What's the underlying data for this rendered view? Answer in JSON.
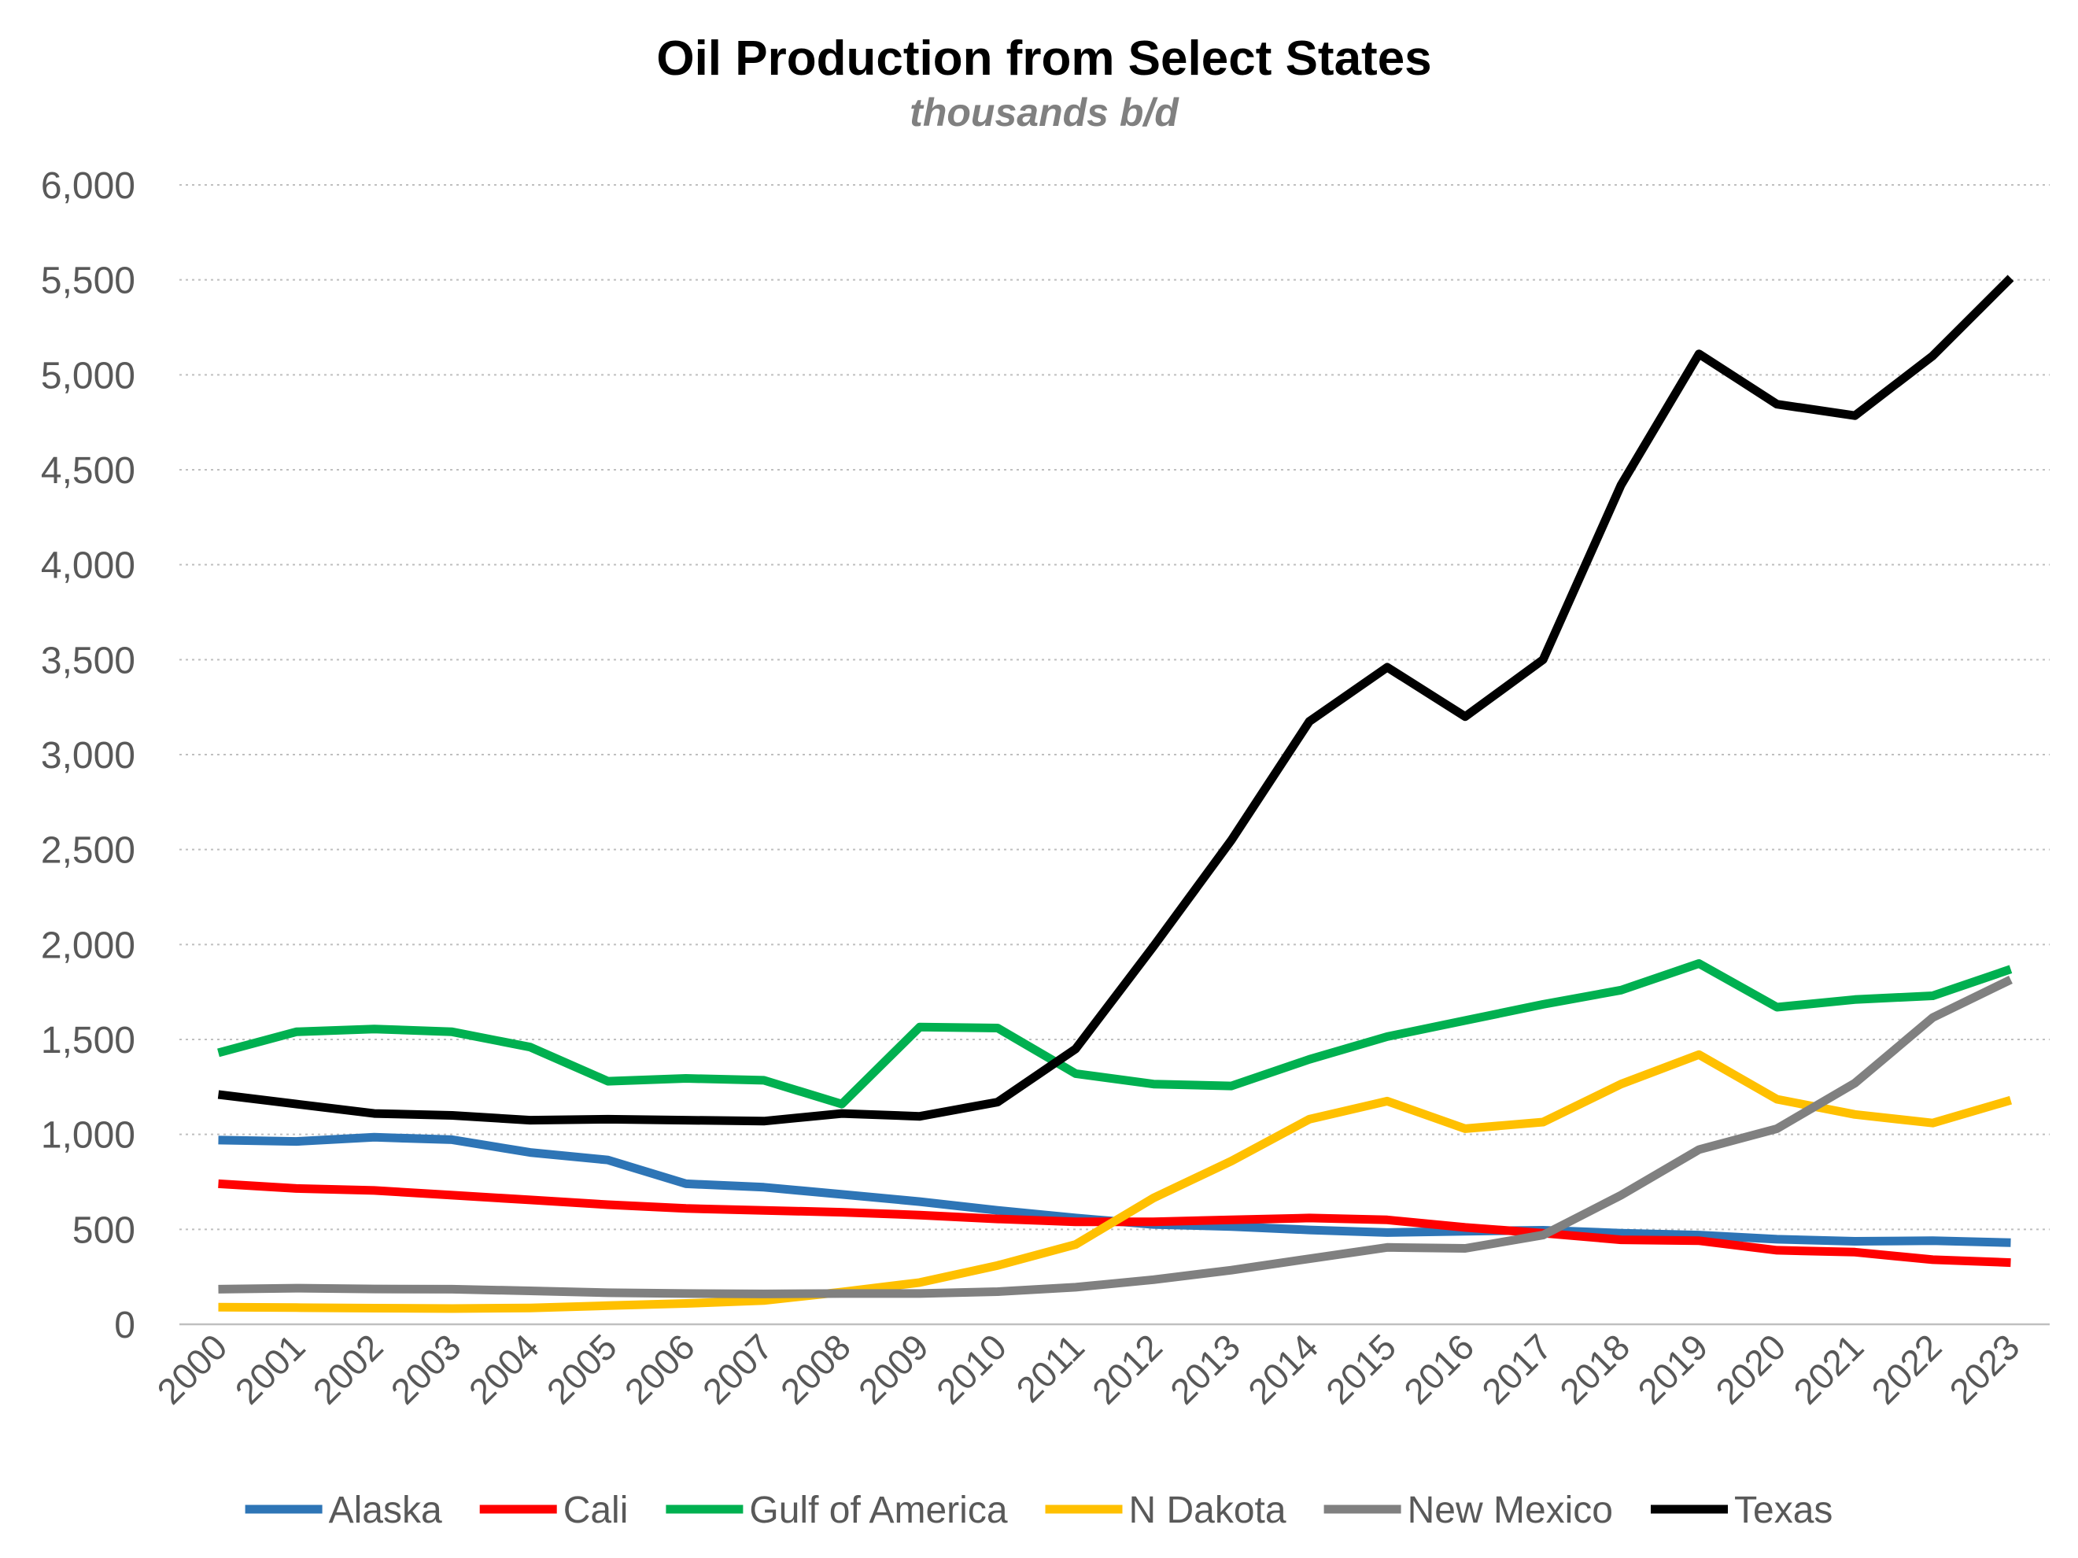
{
  "chart_data": {
    "type": "line",
    "title": "Oil Production from Select States",
    "subtitle": "thousands b/d",
    "xlabel": "",
    "ylabel": "",
    "ylim": [
      0,
      6000
    ],
    "yticks": [
      "0",
      "500",
      "1,000",
      "1,500",
      "2,000",
      "2,500",
      "3,000",
      "3,500",
      "4,000",
      "4,500",
      "5,000",
      "5,500",
      "6,000"
    ],
    "grid": true,
    "legend_position": "bottom",
    "categories": [
      "2000",
      "2001",
      "2002",
      "2003",
      "2004",
      "2005",
      "2006",
      "2007",
      "2008",
      "2009",
      "2010",
      "2011",
      "2012",
      "2013",
      "2014",
      "2015",
      "2016",
      "2017",
      "2018",
      "2019",
      "2020",
      "2021",
      "2022",
      "2023"
    ],
    "series": [
      {
        "name": "Alaska",
        "color": "#2e75b6",
        "values": [
          970,
          963,
          985,
          972,
          905,
          865,
          740,
          722,
          684,
          646,
          600,
          560,
          526,
          515,
          497,
          483,
          490,
          495,
          480,
          470,
          448,
          437,
          440,
          430
        ]
      },
      {
        "name": "Cali",
        "color": "#ff0000",
        "values": [
          740,
          715,
          705,
          680,
          655,
          630,
          610,
          600,
          590,
          575,
          555,
          540,
          540,
          550,
          560,
          550,
          510,
          480,
          445,
          440,
          390,
          380,
          340,
          325
        ]
      },
      {
        "name": "Gulf of America",
        "color": "#00b050",
        "values": [
          1430,
          1540,
          1555,
          1540,
          1460,
          1280,
          1295,
          1285,
          1160,
          1565,
          1560,
          1320,
          1265,
          1255,
          1395,
          1515,
          1600,
          1685,
          1760,
          1900,
          1670,
          1710,
          1730,
          1870
        ]
      },
      {
        "name": "N Dakota",
        "color": "#ffc000",
        "values": [
          90,
          88,
          85,
          83,
          86,
          98,
          110,
          125,
          170,
          220,
          310,
          420,
          665,
          860,
          1080,
          1175,
          1030,
          1065,
          1265,
          1420,
          1185,
          1105,
          1060,
          1180
        ]
      },
      {
        "name": "New Mexico",
        "color": "#808080",
        "values": [
          185,
          190,
          186,
          185,
          176,
          166,
          162,
          160,
          162,
          162,
          172,
          195,
          235,
          285,
          345,
          405,
          400,
          470,
          680,
          920,
          1030,
          1270,
          1615,
          1815
        ]
      },
      {
        "name": "Texas",
        "color": "#000000",
        "values": [
          1210,
          1160,
          1110,
          1100,
          1075,
          1080,
          1075,
          1070,
          1110,
          1095,
          1170,
          1450,
          1990,
          2550,
          3175,
          3460,
          3200,
          3500,
          4420,
          5110,
          4845,
          4785,
          5100,
          5510
        ]
      }
    ]
  }
}
